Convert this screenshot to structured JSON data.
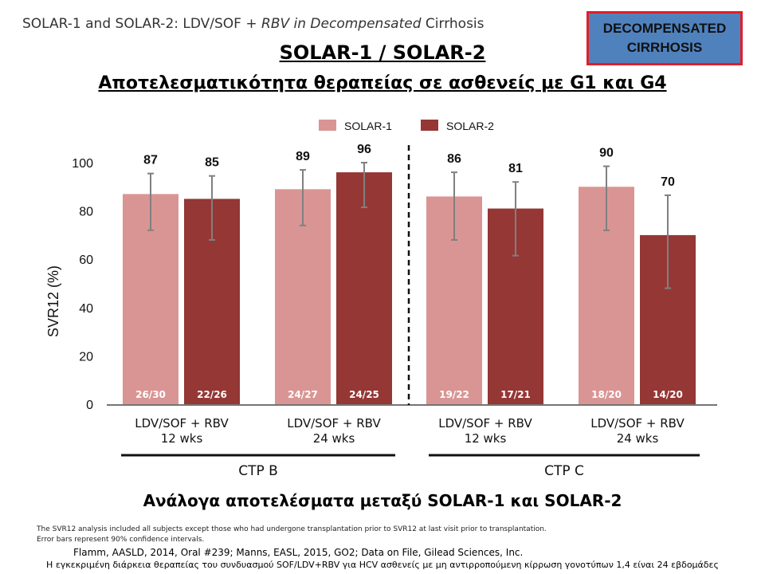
{
  "slide": {
    "top_title_plain": "SOLAR-1 and SOLAR-2: LDV/SOF ",
    "top_title_italic": "+ RBV in Decompensated ",
    "top_title_end": "Cirrhosis",
    "badge_line1": "DECOMPENSATED",
    "badge_line2": "CIRRHOSIS",
    "heading": "SOLAR-1 / SOLAR-2",
    "subheading": "Αποτελεσματικότητα θεραπείας σε ασθενείς με  G1 και G4",
    "conclusion": "Ανάλογα αποτελέσματα μεταξύ SOLAR-1 και SOLAR-2",
    "footnote1": "The SVR12 analysis included all subjects except those who had undergone transplantation prior to SVR12 at last visit prior to transplantation.",
    "footnote2": "Error bars represent 90% confidence intervals.",
    "references": "Flamm, AASLD, 2014, Oral #239; Manns, EASL, 2015,  GO2; Data on File, Gilead Sciences, Inc.",
    "disclaimer": "Η εγκεκριμένη διάρκεια θεραπείας του συνδυασμού SOF/LDV+RBV για HCV ασθενείς με μη αντιρροπούμενη κίρρωση γονοτύπων 1,4 είναι 24 εβδομάδες",
    "colors": {
      "solar1": "#d99594",
      "solar2": "#953735",
      "badge_bg": "#4f81bd",
      "badge_border": "#e01f26"
    }
  },
  "chart_data": {
    "type": "bar",
    "ylabel": "SVR12 (%)",
    "ylim": [
      0,
      100
    ],
    "yticks": [
      0,
      20,
      40,
      60,
      80,
      100
    ],
    "grid": false,
    "legend_position": "top-center",
    "categories": [
      {
        "line1": "LDV/SOF + RBV",
        "line2": "12 wks"
      },
      {
        "line1": "LDV/SOF + RBV",
        "line2": "24 wks"
      },
      {
        "line1": "LDV/SOF + RBV",
        "line2": "12 wks"
      },
      {
        "line1": "LDV/SOF + RBV",
        "line2": "24 wks"
      }
    ],
    "category_groups": [
      {
        "label": "CTP B",
        "categories": [
          0,
          1
        ]
      },
      {
        "label": "CTP C",
        "categories": [
          2,
          3
        ]
      }
    ],
    "series": [
      {
        "name": "SOLAR-1",
        "color": "#d99594",
        "values": [
          87,
          89,
          86,
          90
        ],
        "fractions": [
          "26/30",
          "24/27",
          "19/22",
          "18/20"
        ],
        "ci_low": [
          72,
          74,
          68,
          72
        ],
        "ci_high": [
          95.5,
          97,
          96,
          98.5
        ]
      },
      {
        "name": "SOLAR-2",
        "color": "#953735",
        "values": [
          85,
          96,
          81,
          70
        ],
        "fractions": [
          "22/26",
          "24/25",
          "17/21",
          "14/20"
        ],
        "ci_low": [
          68,
          81.5,
          61.5,
          48
        ],
        "ci_high": [
          94.5,
          100,
          92,
          86.5
        ]
      }
    ]
  }
}
